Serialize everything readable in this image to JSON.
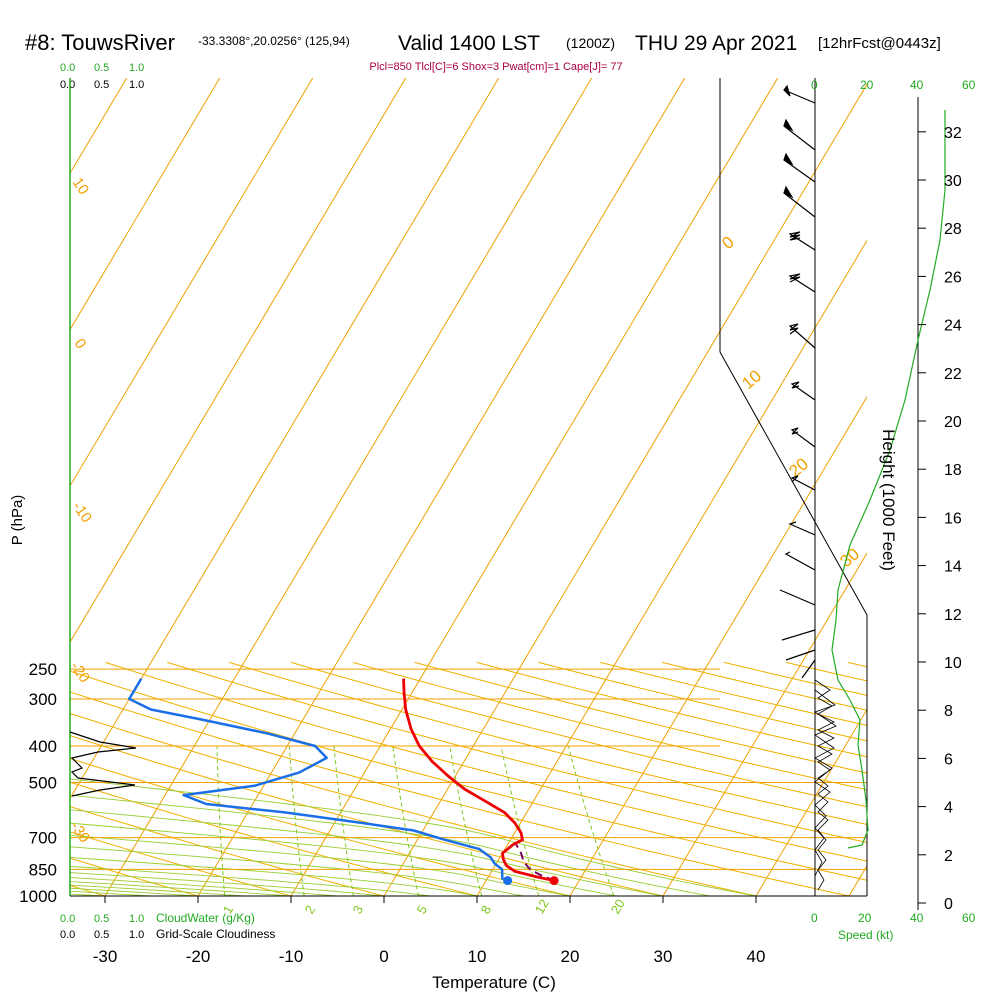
{
  "header": {
    "station": "#8: TouwsRiver",
    "location": "-33.3308°,20.0256° (125,94)",
    "valid": "Valid 1400 LST",
    "zulu": "(1200Z)",
    "date": "THU 29 Apr 2021",
    "forecast": "[12hrFcst@0443z]",
    "params": "Plcl=850 Tlcl[C]=6 Shox=3 Pwat[cm]=1 Cape[J]= 77"
  },
  "labels": {
    "ylabel": "P (hPa)",
    "xlabel": "Temperature (C)",
    "height_label": "Height (1000 Feet)",
    "cloudwater_label": "CloudWater (g/Kg)",
    "cloudiness_label": "Grid-Scale Cloudiness",
    "speed_label": "Speed (kt)"
  },
  "cloud_scale": {
    "green_ticks": [
      "0.0",
      "0.5",
      "1.0"
    ],
    "black_ticks": [
      "0.0",
      "0.5",
      "1.0"
    ]
  },
  "speed_ticks": [
    "0",
    "20",
    "40",
    "60"
  ],
  "isotherm_labels": [
    "10",
    "0",
    "-10",
    "-20",
    "-30",
    "0",
    "10",
    "20",
    "30"
  ],
  "mixing_ratio_labels": [
    "1",
    "2",
    "3",
    "5",
    "8",
    "12",
    "20"
  ],
  "colors": {
    "temperature": "#ee0000",
    "dewpoint": "#1a6fe8",
    "parcel": "#800060",
    "isotherm": "#f0a000",
    "dry_adiabat": "#f0b000",
    "moist_adiabat": "#9acd32",
    "mixing_ratio": "#7fc820",
    "green_text": "#22aa22",
    "params_text": "#aa0044"
  },
  "chart_data": {
    "type": "skew-t",
    "x_axis": {
      "label": "Temperature (C)",
      "ticks": [
        -30,
        -20,
        -10,
        0,
        10,
        20,
        30,
        40
      ]
    },
    "y_axis": {
      "label": "P (hPa)",
      "ticks": [
        250,
        300,
        400,
        500,
        700,
        850,
        1000
      ],
      "scale": "log"
    },
    "height_axis": {
      "label": "Height (1000 Feet)",
      "ticks": [
        0,
        2,
        4,
        6,
        8,
        10,
        12,
        14,
        16,
        18,
        20,
        22,
        24,
        26,
        28,
        30,
        32
      ]
    },
    "temperature": [
      {
        "p": 910,
        "t": 17.3
      },
      {
        "p": 890,
        "t": 15.2
      },
      {
        "p": 860,
        "t": 12.5
      },
      {
        "p": 830,
        "t": 11.2
      },
      {
        "p": 800,
        "t": 10.5
      },
      {
        "p": 770,
        "t": 10.0
      },
      {
        "p": 730,
        "t": 10.6
      },
      {
        "p": 710,
        "t": 11.3
      },
      {
        "p": 680,
        "t": 10.7
      },
      {
        "p": 640,
        "t": 9.4
      },
      {
        "p": 600,
        "t": 7.6
      },
      {
        "p": 560,
        "t": 4.8
      },
      {
        "p": 520,
        "t": 1.8
      },
      {
        "p": 480,
        "t": -0.8
      },
      {
        "p": 440,
        "t": -3.4
      },
      {
        "p": 400,
        "t": -5.8
      },
      {
        "p": 360,
        "t": -7.8
      },
      {
        "p": 320,
        "t": -9.6
      },
      {
        "p": 290,
        "t": -10.8
      },
      {
        "p": 265,
        "t": -11.8
      }
    ],
    "dewpoint": [
      {
        "p": 905,
        "t": 11.7
      },
      {
        "p": 890,
        "t": 11.5
      },
      {
        "p": 850,
        "t": 11.0
      },
      {
        "p": 820,
        "t": 9.8
      },
      {
        "p": 790,
        "t": 9.0
      },
      {
        "p": 750,
        "t": 7.2
      },
      {
        "p": 710,
        "t": 3.0
      },
      {
        "p": 670,
        "t": -1.0
      },
      {
        "p": 640,
        "t": -7.0
      },
      {
        "p": 600,
        "t": -16.0
      },
      {
        "p": 570,
        "t": -25.0
      },
      {
        "p": 540,
        "t": -28.0
      },
      {
        "p": 510,
        "t": -21.0
      },
      {
        "p": 470,
        "t": -17.0
      },
      {
        "p": 430,
        "t": -15.0
      },
      {
        "p": 400,
        "t": -17.0
      },
      {
        "p": 370,
        "t": -23.0
      },
      {
        "p": 340,
        "t": -31.0
      },
      {
        "p": 320,
        "t": -37.0
      },
      {
        "p": 300,
        "t": -40.0
      },
      {
        "p": 285,
        "t": -40.0
      },
      {
        "p": 265,
        "t": -40.0
      }
    ],
    "parcel": [
      {
        "p": 910,
        "t": 17.3
      },
      {
        "p": 880,
        "t": 15.5
      },
      {
        "p": 850,
        "t": 14.0
      },
      {
        "p": 810,
        "t": 12.8
      },
      {
        "p": 770,
        "t": 12.0
      },
      {
        "p": 740,
        "t": 11.2
      },
      {
        "p": 720,
        "t": 10.6
      }
    ],
    "sfc_temperature": 17.3,
    "sfc_dewpoint": 12.3,
    "sfc_pressure": 910
  }
}
